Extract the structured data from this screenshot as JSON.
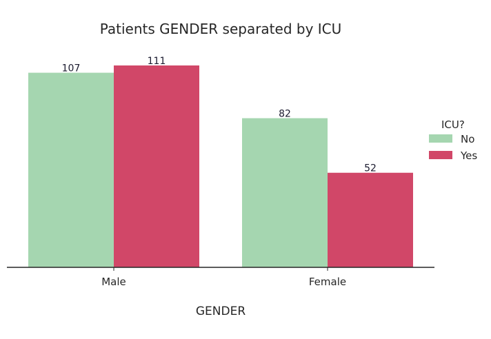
{
  "chart_data": {
    "type": "bar",
    "title": "Patients GENDER separated by ICU",
    "xlabel": "GENDER",
    "ylabel": "",
    "categories": [
      "Male",
      "Female"
    ],
    "series": [
      {
        "name": "No",
        "values": [
          107,
          82
        ],
        "color": "#a5d6b0"
      },
      {
        "name": "Yes",
        "values": [
          111,
          52
        ],
        "color": "#d14768"
      }
    ],
    "ylim": [
      0,
      111
    ],
    "grid": false,
    "legend": {
      "title": "ICU?",
      "placement": "right"
    },
    "data_labels": true
  }
}
